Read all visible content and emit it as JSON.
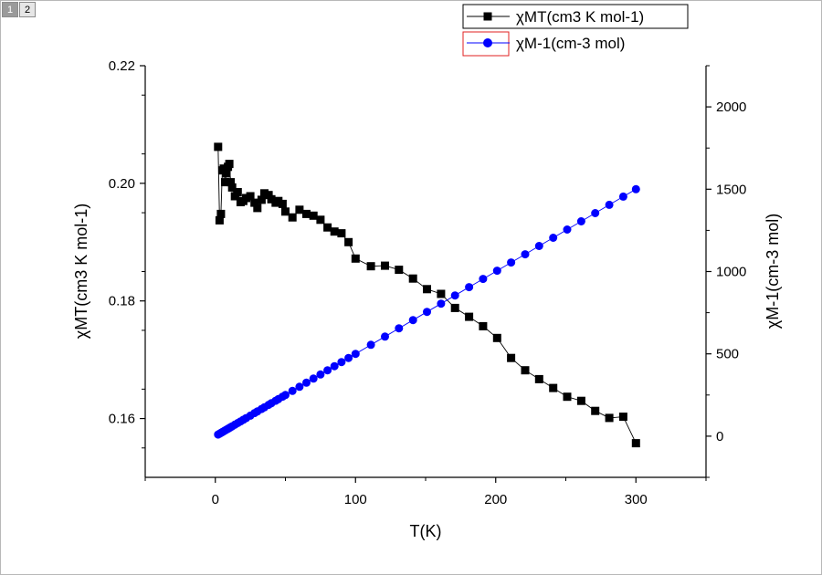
{
  "page_tabs": [
    {
      "label": "1",
      "active": true
    },
    {
      "label": "2",
      "active": false
    }
  ],
  "chart_data": {
    "type": "scatter",
    "xlabel": "T(K)",
    "ylabel": "χMT(cm3 K mol-1)",
    "y2label": "χM-1(cm-3 mol)",
    "xlim": [
      -50,
      350
    ],
    "ylim": [
      0.15,
      0.22
    ],
    "y2lim": [
      -250,
      2250
    ],
    "x_ticks": [
      0,
      100,
      200,
      300
    ],
    "y_ticks": [
      0.16,
      0.18,
      0.2,
      0.22
    ],
    "y2_ticks": [
      0,
      500,
      1000,
      1500,
      2000
    ],
    "y_tick_labels": [
      "0.16",
      "0.18",
      "0.20",
      "0.22"
    ],
    "legend_position": "top-right",
    "series": [
      {
        "name": "χMT(cm3 K mol-1)",
        "axis": "left",
        "marker": "square",
        "color": "#000000",
        "x": [
          2,
          3,
          4,
          5,
          6,
          7,
          8,
          9,
          10,
          11,
          12,
          14,
          16,
          18,
          20,
          22,
          25,
          28,
          30,
          33,
          35,
          38,
          40,
          43,
          45,
          48,
          50,
          55,
          60,
          65,
          70,
          75,
          80,
          85,
          90,
          95,
          100,
          111,
          121,
          131,
          141,
          151,
          161,
          171,
          181,
          191,
          201,
          211,
          221,
          231,
          241,
          251,
          261,
          271,
          281,
          291,
          300
        ],
        "y": [
          0.2062,
          0.1937,
          0.1948,
          0.2022,
          0.2025,
          0.2002,
          0.2017,
          0.2028,
          0.2033,
          0.2002,
          0.1993,
          0.1978,
          0.1985,
          0.1968,
          0.197,
          0.1975,
          0.1978,
          0.1967,
          0.1958,
          0.1972,
          0.1983,
          0.198,
          0.1973,
          0.1967,
          0.197,
          0.1965,
          0.1952,
          0.1942,
          0.1955,
          0.1948,
          0.1945,
          0.1938,
          0.1925,
          0.1918,
          0.1915,
          0.19,
          0.1872,
          0.1859,
          0.186,
          0.1853,
          0.1838,
          0.182,
          0.1812,
          0.1788,
          0.1773,
          0.1757,
          0.1737,
          0.1703,
          0.1682,
          0.1667,
          0.1652,
          0.1637,
          0.163,
          0.1613,
          0.1601,
          0.1603,
          0.1558
        ]
      },
      {
        "name": "χM-1(cm-3 mol)",
        "axis": "right",
        "marker": "circle",
        "color": "#0000ff",
        "x": [
          2,
          3,
          4,
          5,
          6,
          7,
          8,
          9,
          10,
          11,
          12,
          14,
          16,
          18,
          20,
          22,
          25,
          28,
          30,
          33,
          35,
          38,
          40,
          43,
          45,
          48,
          50,
          55,
          60,
          65,
          70,
          75,
          80,
          85,
          90,
          95,
          100,
          111,
          121,
          131,
          141,
          151,
          161,
          171,
          181,
          191,
          201,
          211,
          221,
          231,
          241,
          251,
          261,
          271,
          281,
          291,
          300
        ],
        "y": [
          10,
          15,
          20,
          25,
          30,
          35,
          40,
          45,
          50,
          55,
          60,
          70,
          80,
          90,
          100,
          110,
          125,
          140,
          150,
          165,
          175,
          190,
          200,
          215,
          225,
          240,
          250,
          275,
          300,
          325,
          350,
          375,
          400,
          425,
          450,
          475,
          500,
          555,
          605,
          655,
          705,
          755,
          805,
          855,
          905,
          955,
          1005,
          1055,
          1105,
          1155,
          1205,
          1255,
          1305,
          1355,
          1405,
          1455,
          1500
        ]
      }
    ]
  }
}
